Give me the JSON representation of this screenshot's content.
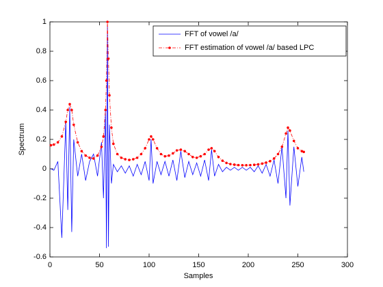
{
  "chart_data": {
    "type": "line",
    "xlabel": "Samples",
    "ylabel": "Spectrum",
    "x": [
      1,
      4,
      8,
      12,
      16,
      18,
      20,
      22,
      24,
      28,
      32,
      36,
      40,
      44,
      48,
      52,
      54,
      56,
      57,
      58,
      59,
      60,
      62,
      64,
      68,
      72,
      76,
      80,
      84,
      88,
      92,
      96,
      100,
      102,
      104,
      108,
      112,
      116,
      120,
      124,
      128,
      132,
      136,
      140,
      144,
      148,
      152,
      156,
      160,
      163,
      166,
      170,
      174,
      178,
      182,
      186,
      190,
      194,
      198,
      202,
      206,
      210,
      214,
      218,
      222,
      226,
      230,
      234,
      238,
      240,
      242,
      246,
      250,
      254,
      256
    ],
    "series": [
      {
        "name": "FFT of vowel /a/",
        "color": "#0000ff",
        "values": [
          0,
          -0.01,
          0.05,
          -0.47,
          0.32,
          -0.28,
          0.42,
          -0.43,
          0.2,
          -0.05,
          0.1,
          -0.08,
          0.05,
          0.1,
          -0.05,
          0.18,
          -0.2,
          0.4,
          -0.54,
          0.98,
          -0.53,
          0.3,
          -0.1,
          0.03,
          -0.02,
          0.02,
          -0.03,
          0.02,
          -0.05,
          0.03,
          -0.04,
          0.05,
          -0.08,
          0.2,
          -0.1,
          0.05,
          -0.04,
          0.05,
          -0.05,
          0.06,
          -0.08,
          0.12,
          -0.06,
          0.05,
          -0.04,
          0.04,
          -0.05,
          0.06,
          -0.08,
          0.13,
          -0.05,
          0.03,
          -0.02,
          0.01,
          -0.01,
          0.01,
          -0.01,
          0.01,
          -0.01,
          0.01,
          -0.02,
          0.02,
          -0.03,
          0.03,
          -0.05,
          0.06,
          -0.1,
          0.15,
          -0.2,
          0.26,
          -0.25,
          0.15,
          -0.12,
          0.08,
          -0.02
        ]
      },
      {
        "name": "FFT estimation of vowel /a/ based LPC",
        "color": "#ff0000",
        "marker": "dot",
        "values": [
          0.16,
          0.165,
          0.18,
          0.22,
          0.32,
          0.4,
          0.44,
          0.4,
          0.3,
          0.18,
          0.12,
          0.09,
          0.075,
          0.07,
          0.09,
          0.15,
          0.22,
          0.4,
          0.6,
          1.0,
          0.75,
          0.5,
          0.28,
          0.17,
          0.1,
          0.075,
          0.065,
          0.06,
          0.065,
          0.075,
          0.1,
          0.14,
          0.2,
          0.22,
          0.2,
          0.14,
          0.1,
          0.085,
          0.09,
          0.105,
          0.125,
          0.13,
          0.12,
          0.1,
          0.08,
          0.075,
          0.085,
          0.1,
          0.13,
          0.14,
          0.12,
          0.08,
          0.055,
          0.04,
          0.032,
          0.028,
          0.025,
          0.024,
          0.024,
          0.025,
          0.027,
          0.03,
          0.035,
          0.042,
          0.052,
          0.07,
          0.1,
          0.15,
          0.24,
          0.28,
          0.26,
          0.19,
          0.14,
          0.12,
          0.115
        ]
      }
    ],
    "xlim": [
      0,
      300
    ],
    "xticks": [
      0,
      50,
      100,
      150,
      200,
      250,
      300
    ],
    "ylim": [
      -0.6,
      1
    ],
    "yticks": [
      -0.6,
      -0.4,
      -0.2,
      0,
      0.2,
      0.4,
      0.6,
      0.8,
      1
    ],
    "grid": false,
    "legend": "northeast"
  }
}
